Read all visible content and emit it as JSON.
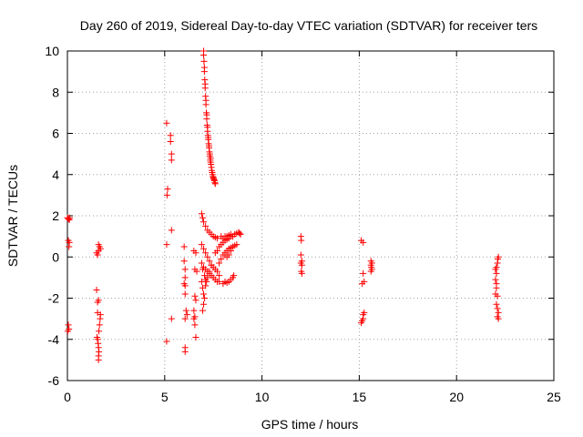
{
  "chart_data": {
    "type": "scatter",
    "title": "Day 260 of 2019, Sidereal Day-to-day VTEC variation (SDTVAR) for receiver ters",
    "xlabel": "GPS time / hours",
    "ylabel": "SDTVAR / TECUs",
    "xlim": [
      0,
      25
    ],
    "ylim": [
      -6,
      10
    ],
    "xticks": [
      0,
      5,
      10,
      15,
      20,
      25
    ],
    "yticks": [
      -6,
      -4,
      -2,
      0,
      2,
      4,
      6,
      8,
      10
    ],
    "grid": true,
    "marker": "plus",
    "color": "#ff0000",
    "series": [
      {
        "name": "SDTVAR",
        "points": [
          [
            0.0,
            1.9
          ],
          [
            0.05,
            1.85
          ],
          [
            0.1,
            1.8
          ],
          [
            0.12,
            1.9
          ],
          [
            0.05,
            0.8
          ],
          [
            0.1,
            0.7
          ],
          [
            0.08,
            0.5
          ],
          [
            0.05,
            -3.3
          ],
          [
            0.08,
            -3.5
          ],
          [
            0.02,
            -3.6
          ],
          [
            1.5,
            -1.6
          ],
          [
            1.55,
            -2.2
          ],
          [
            1.6,
            -2.1
          ],
          [
            1.55,
            -2.7
          ],
          [
            1.5,
            0.2
          ],
          [
            1.55,
            0.1
          ],
          [
            1.6,
            0.3
          ],
          [
            1.65,
            0.5
          ],
          [
            1.7,
            0.4
          ],
          [
            1.6,
            0.6
          ],
          [
            1.52,
            -3.9
          ],
          [
            1.55,
            -4.0
          ],
          [
            1.58,
            -4.2
          ],
          [
            1.6,
            -4.4
          ],
          [
            1.62,
            -4.6
          ],
          [
            1.6,
            -4.8
          ],
          [
            1.6,
            -5.0
          ],
          [
            1.65,
            -3.3
          ],
          [
            1.68,
            -3.0
          ],
          [
            1.7,
            -2.8
          ],
          [
            1.62,
            -3.6
          ],
          [
            5.1,
            6.5
          ],
          [
            5.15,
            3.3
          ],
          [
            5.12,
            3.0
          ],
          [
            5.1,
            0.6
          ],
          [
            5.1,
            -4.1
          ],
          [
            5.3,
            5.9
          ],
          [
            5.3,
            5.6
          ],
          [
            5.35,
            5.0
          ],
          [
            5.35,
            4.7
          ],
          [
            5.35,
            1.3
          ],
          [
            5.35,
            -3.0
          ],
          [
            6.0,
            0.5
          ],
          [
            6.0,
            -0.2
          ],
          [
            6.05,
            -0.6
          ],
          [
            6.05,
            -1.0
          ],
          [
            6.0,
            -1.3
          ],
          [
            6.05,
            -1.4
          ],
          [
            6.05,
            -1.8
          ],
          [
            6.1,
            -2.6
          ],
          [
            6.15,
            -2.8
          ],
          [
            6.05,
            -3.0
          ],
          [
            6.05,
            -4.4
          ],
          [
            6.05,
            -4.6
          ],
          [
            6.5,
            0.3
          ],
          [
            6.6,
            0.2
          ],
          [
            6.55,
            -0.6
          ],
          [
            6.65,
            -0.7
          ],
          [
            6.55,
            -1.9
          ],
          [
            6.6,
            -2.1
          ],
          [
            6.5,
            -2.6
          ],
          [
            6.55,
            -2.9
          ],
          [
            6.5,
            -3.0
          ],
          [
            6.55,
            -3.3
          ],
          [
            6.6,
            -3.9
          ],
          [
            6.9,
            2.1
          ],
          [
            6.95,
            1.9
          ],
          [
            7.0,
            1.7
          ],
          [
            7.1,
            1.5
          ],
          [
            7.2,
            1.3
          ],
          [
            7.3,
            1.2
          ],
          [
            7.4,
            1.1
          ],
          [
            7.5,
            1.0
          ],
          [
            7.6,
            0.95
          ],
          [
            7.7,
            0.9
          ],
          [
            6.9,
            0.6
          ],
          [
            7.0,
            0.4
          ],
          [
            7.1,
            0.2
          ],
          [
            7.2,
            0.0
          ],
          [
            7.3,
            -0.2
          ],
          [
            7.4,
            -0.4
          ],
          [
            7.5,
            -0.5
          ],
          [
            7.6,
            -0.6
          ],
          [
            7.7,
            -0.7
          ],
          [
            7.8,
            -0.9
          ],
          [
            6.9,
            -0.3
          ],
          [
            7.0,
            -0.5
          ],
          [
            7.1,
            -0.6
          ],
          [
            7.2,
            -0.7
          ],
          [
            7.3,
            -0.8
          ],
          [
            7.4,
            -0.9
          ],
          [
            7.5,
            -1.0
          ],
          [
            7.6,
            -1.1
          ],
          [
            7.7,
            -1.2
          ],
          [
            7.8,
            -1.2
          ],
          [
            6.9,
            -1.2
          ],
          [
            6.95,
            -1.5
          ],
          [
            7.0,
            -1.8
          ],
          [
            7.05,
            -2.0
          ],
          [
            7.0,
            -2.3
          ],
          [
            6.95,
            -2.6
          ],
          [
            7.1,
            -1.4
          ],
          [
            7.2,
            -1.0
          ],
          [
            7.3,
            -0.7
          ],
          [
            7.4,
            -0.4
          ],
          [
            6.95,
            -0.6
          ],
          [
            7.05,
            -0.9
          ],
          [
            7.1,
            -1.1
          ],
          [
            7.15,
            -1.2
          ],
          [
            7.0,
            10.0
          ],
          [
            7.02,
            9.5
          ],
          [
            7.04,
            9.0
          ],
          [
            7.06,
            8.6
          ],
          [
            7.08,
            8.2
          ],
          [
            7.1,
            7.8
          ],
          [
            7.12,
            7.4
          ],
          [
            7.14,
            7.0
          ],
          [
            7.16,
            6.7
          ],
          [
            7.18,
            6.4
          ],
          [
            7.2,
            6.1
          ],
          [
            7.22,
            5.9
          ],
          [
            7.24,
            5.7
          ],
          [
            7.26,
            5.5
          ],
          [
            7.28,
            5.3
          ],
          [
            7.3,
            5.1
          ],
          [
            7.32,
            4.9
          ],
          [
            7.34,
            4.7
          ],
          [
            7.36,
            4.6
          ],
          [
            7.38,
            4.5
          ],
          [
            7.4,
            4.35
          ],
          [
            7.42,
            4.2
          ],
          [
            7.44,
            4.1
          ],
          [
            7.46,
            4.0
          ],
          [
            7.48,
            3.9
          ],
          [
            7.5,
            3.85
          ],
          [
            7.52,
            3.8
          ],
          [
            7.54,
            3.75
          ],
          [
            7.56,
            3.7
          ],
          [
            7.58,
            3.6
          ],
          [
            7.6,
            3.55
          ],
          [
            7.0,
            9.8
          ],
          [
            7.04,
            9.2
          ],
          [
            7.08,
            8.4
          ],
          [
            7.12,
            7.6
          ],
          [
            7.16,
            6.9
          ],
          [
            7.2,
            6.3
          ],
          [
            7.24,
            5.8
          ],
          [
            7.28,
            5.4
          ],
          [
            7.32,
            5.0
          ],
          [
            7.36,
            4.8
          ],
          [
            7.6,
            0.2
          ],
          [
            7.7,
            0.3
          ],
          [
            7.8,
            0.5
          ],
          [
            7.9,
            0.6
          ],
          [
            8.0,
            0.7
          ],
          [
            8.1,
            0.8
          ],
          [
            8.2,
            0.85
          ],
          [
            8.3,
            0.9
          ],
          [
            8.4,
            1.0
          ],
          [
            8.5,
            1.0
          ],
          [
            7.8,
            -0.3
          ],
          [
            7.9,
            -0.1
          ],
          [
            8.0,
            0.1
          ],
          [
            8.1,
            0.2
          ],
          [
            8.2,
            0.3
          ],
          [
            8.3,
            0.4
          ],
          [
            8.4,
            0.45
          ],
          [
            8.5,
            0.5
          ],
          [
            8.6,
            0.55
          ],
          [
            8.7,
            0.6
          ],
          [
            8.0,
            -1.3
          ],
          [
            8.1,
            -1.2
          ],
          [
            8.2,
            -1.25
          ],
          [
            8.3,
            -1.2
          ],
          [
            8.4,
            -1.1
          ],
          [
            8.5,
            -1.0
          ],
          [
            8.55,
            -0.9
          ],
          [
            7.9,
            1.0
          ],
          [
            8.0,
            0.9
          ],
          [
            8.1,
            1.0
          ],
          [
            8.2,
            1.0
          ],
          [
            8.3,
            1.05
          ],
          [
            8.4,
            1.1
          ],
          [
            8.5,
            1.0
          ],
          [
            8.6,
            1.1
          ],
          [
            8.7,
            1.15
          ],
          [
            8.8,
            1.2
          ],
          [
            8.85,
            1.15
          ],
          [
            8.9,
            1.1
          ],
          [
            8.1,
            0.1
          ],
          [
            8.2,
            0.0
          ],
          [
            8.3,
            0.1
          ],
          [
            8.4,
            0.3
          ],
          [
            12.0,
            1.0
          ],
          [
            12.02,
            0.8
          ],
          [
            12.0,
            0.1
          ],
          [
            12.05,
            -0.2
          ],
          [
            12.0,
            -0.3
          ],
          [
            12.05,
            -0.4
          ],
          [
            12.02,
            -0.7
          ],
          [
            12.05,
            -0.8
          ],
          [
            15.1,
            0.8
          ],
          [
            15.2,
            0.7
          ],
          [
            15.2,
            -0.8
          ],
          [
            15.25,
            -1.2
          ],
          [
            15.15,
            -1.3
          ],
          [
            15.2,
            -2.8
          ],
          [
            15.25,
            -2.7
          ],
          [
            15.2,
            -3.0
          ],
          [
            15.15,
            -3.1
          ],
          [
            15.1,
            -3.2
          ],
          [
            15.6,
            -0.2
          ],
          [
            15.65,
            -0.3
          ],
          [
            15.6,
            -0.4
          ],
          [
            15.65,
            -0.6
          ],
          [
            15.6,
            -0.7
          ],
          [
            15.62,
            -0.5
          ],
          [
            22.0,
            -0.6
          ],
          [
            22.05,
            -0.5
          ],
          [
            22.1,
            -0.3
          ],
          [
            22.12,
            -0.1
          ],
          [
            22.15,
            0.0
          ],
          [
            22.05,
            -0.8
          ],
          [
            22.0,
            -1.1
          ],
          [
            22.05,
            -1.3
          ],
          [
            22.1,
            -1.9
          ],
          [
            22.0,
            -1.8
          ],
          [
            22.05,
            -2.3
          ],
          [
            22.1,
            -2.5
          ],
          [
            22.15,
            -2.7
          ],
          [
            22.1,
            -2.9
          ],
          [
            22.15,
            -3.0
          ],
          [
            22.05,
            -1.5
          ]
        ]
      }
    ]
  }
}
